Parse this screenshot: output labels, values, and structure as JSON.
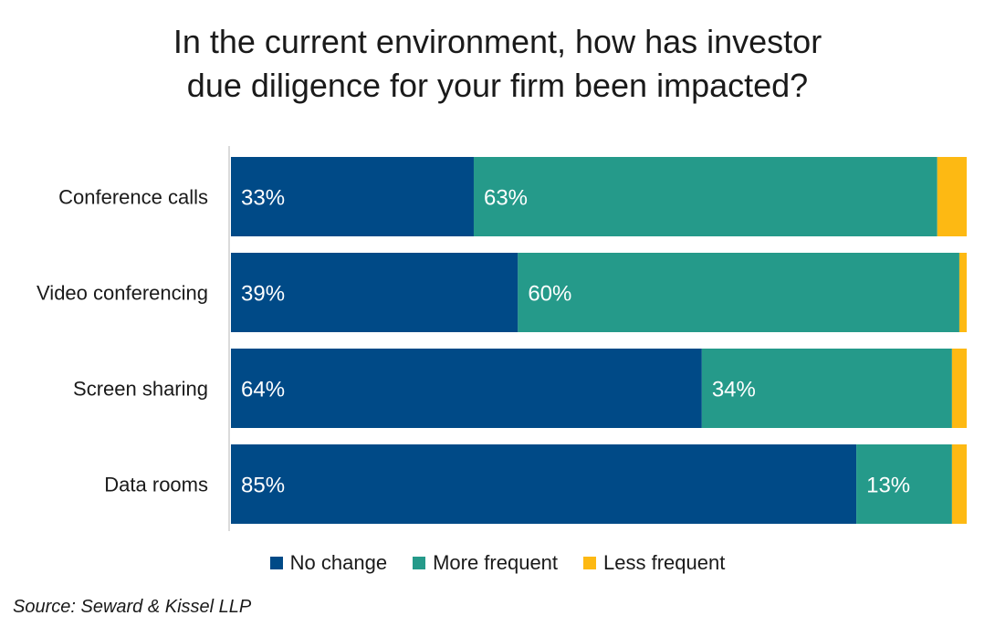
{
  "chart_data": {
    "type": "bar",
    "orientation": "horizontal",
    "stacked": true,
    "title": "In the current environment, how has investor due diligence for your firm been impacted?",
    "title_lines": [
      "In the current environment, how has investor",
      "due diligence for your firm been impacted?"
    ],
    "categories": [
      "Conference calls",
      "Video conferencing",
      "Screen sharing",
      "Data rooms"
    ],
    "series": [
      {
        "name": "No change",
        "values": [
          33,
          39,
          64,
          85
        ],
        "labels": [
          "33%",
          "39%",
          "64%",
          "85%"
        ],
        "color": "#004a87"
      },
      {
        "name": "More frequent",
        "values": [
          63,
          60,
          34,
          13
        ],
        "labels": [
          "63%",
          "60%",
          "34%",
          "13%"
        ],
        "color": "#259a8a"
      },
      {
        "name": "Less frequent",
        "values": [
          4,
          1,
          2,
          2
        ],
        "labels": [
          "",
          "",
          "",
          ""
        ],
        "color": "#fdb913"
      }
    ],
    "xlim": [
      0,
      100
    ],
    "grid": false,
    "legend_position": "bottom",
    "source": "Source: Seward & Kissel LLP"
  }
}
